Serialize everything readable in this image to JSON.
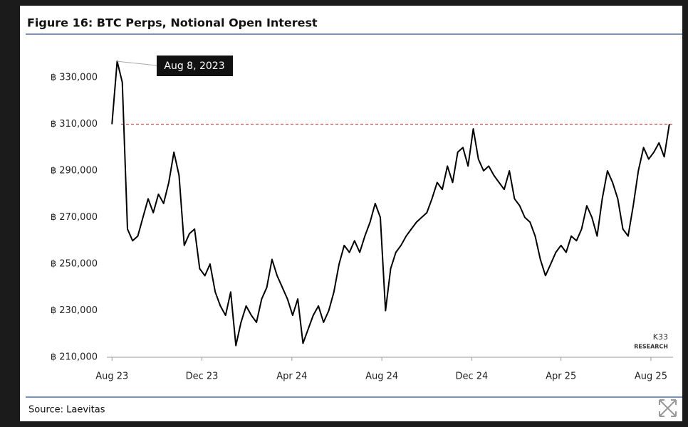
{
  "chart_data": {
    "type": "line",
    "title": "Figure 16: BTC Perps, Notional Open Interest",
    "source": "Source: Laevitas",
    "watermark": [
      "K33",
      "RESEARCH"
    ],
    "annotation": {
      "text": "Aug 8, 2023",
      "x": "2023-08-08"
    },
    "reference_line": {
      "value": 310000,
      "color": "#c0504d"
    },
    "xlim": [
      "2023-07-25",
      "2025-08-31"
    ],
    "xticks": [
      {
        "value": "2023-08-01",
        "label": "Aug 23"
      },
      {
        "value": "2023-12-01",
        "label": "Dec 23"
      },
      {
        "value": "2024-04-01",
        "label": "Apr 24"
      },
      {
        "value": "2024-08-01",
        "label": "Aug 24"
      },
      {
        "value": "2024-12-01",
        "label": "Dec 24"
      },
      {
        "value": "2025-04-01",
        "label": "Apr 25"
      },
      {
        "value": "2025-08-01",
        "label": "Aug 25"
      }
    ],
    "ylim": [
      210000,
      330000
    ],
    "yticks": [
      {
        "value": 210000,
        "label": "฿ 210,000"
      },
      {
        "value": 230000,
        "label": "฿ 230,000"
      },
      {
        "value": 250000,
        "label": "฿ 250,000"
      },
      {
        "value": 270000,
        "label": "฿ 270,000"
      },
      {
        "value": 290000,
        "label": "฿ 290,000"
      },
      {
        "value": 310000,
        "label": "฿ 310,000"
      },
      {
        "value": 330000,
        "label": "฿ 330,000"
      }
    ],
    "x": [
      "2023-08-01",
      "2023-08-08",
      "2023-08-15",
      "2023-08-22",
      "2023-08-29",
      "2023-09-05",
      "2023-09-12",
      "2023-09-19",
      "2023-09-26",
      "2023-10-03",
      "2023-10-10",
      "2023-10-17",
      "2023-10-24",
      "2023-10-31",
      "2023-11-07",
      "2023-11-14",
      "2023-11-21",
      "2023-11-28",
      "2023-12-05",
      "2023-12-12",
      "2023-12-19",
      "2023-12-26",
      "2024-01-02",
      "2024-01-09",
      "2024-01-16",
      "2024-01-23",
      "2024-01-30",
      "2024-02-06",
      "2024-02-13",
      "2024-02-20",
      "2024-02-27",
      "2024-03-05",
      "2024-03-12",
      "2024-03-19",
      "2024-03-26",
      "2024-04-02",
      "2024-04-09",
      "2024-04-16",
      "2024-04-23",
      "2024-04-30",
      "2024-05-07",
      "2024-05-14",
      "2024-05-21",
      "2024-05-28",
      "2024-06-04",
      "2024-06-11",
      "2024-06-18",
      "2024-06-25",
      "2024-07-02",
      "2024-07-09",
      "2024-07-16",
      "2024-07-23",
      "2024-07-30",
      "2024-08-06",
      "2024-08-13",
      "2024-08-20",
      "2024-08-27",
      "2024-09-03",
      "2024-09-10",
      "2024-09-17",
      "2024-09-24",
      "2024-10-01",
      "2024-10-08",
      "2024-10-15",
      "2024-10-22",
      "2024-10-29",
      "2024-11-05",
      "2024-11-12",
      "2024-11-19",
      "2024-11-26",
      "2024-12-03",
      "2024-12-10",
      "2024-12-17",
      "2024-12-24",
      "2024-12-31",
      "2025-01-07",
      "2025-01-14",
      "2025-01-21",
      "2025-01-28",
      "2025-02-04",
      "2025-02-11",
      "2025-02-18",
      "2025-02-25",
      "2025-03-04",
      "2025-03-11",
      "2025-03-18",
      "2025-03-25",
      "2025-04-01",
      "2025-04-08",
      "2025-04-15",
      "2025-04-22",
      "2025-04-29",
      "2025-05-06",
      "2025-05-13",
      "2025-05-20",
      "2025-05-27",
      "2025-06-03",
      "2025-06-10",
      "2025-06-17",
      "2025-06-24",
      "2025-07-01",
      "2025-07-08",
      "2025-07-15",
      "2025-07-22",
      "2025-07-29",
      "2025-08-05",
      "2025-08-12",
      "2025-08-19",
      "2025-08-26"
    ],
    "series": [
      {
        "name": "BTC Perps Notional OI",
        "color": "#000000",
        "values": [
          310000,
          337000,
          328000,
          265000,
          260000,
          262000,
          270000,
          278000,
          272000,
          280000,
          276000,
          285000,
          298000,
          288000,
          258000,
          263000,
          265000,
          248000,
          245000,
          250000,
          238000,
          232000,
          228000,
          238000,
          215000,
          225000,
          232000,
          228000,
          225000,
          235000,
          240000,
          252000,
          245000,
          240000,
          235000,
          228000,
          235000,
          216000,
          222000,
          228000,
          232000,
          225000,
          230000,
          238000,
          250000,
          258000,
          255000,
          260000,
          255000,
          262000,
          268000,
          276000,
          270000,
          230000,
          248000,
          255000,
          258000,
          262000,
          265000,
          268000,
          270000,
          272000,
          278000,
          285000,
          282000,
          292000,
          285000,
          298000,
          300000,
          292000,
          308000,
          295000,
          290000,
          292000,
          288000,
          285000,
          282000,
          290000,
          278000,
          275000,
          270000,
          268000,
          262000,
          252000,
          245000,
          250000,
          255000,
          258000,
          255000,
          262000,
          260000,
          265000,
          275000,
          270000,
          262000,
          278000,
          290000,
          285000,
          278000,
          265000,
          262000,
          275000,
          290000,
          300000,
          295000,
          298000,
          302000,
          296000,
          310000
        ]
      }
    ]
  }
}
